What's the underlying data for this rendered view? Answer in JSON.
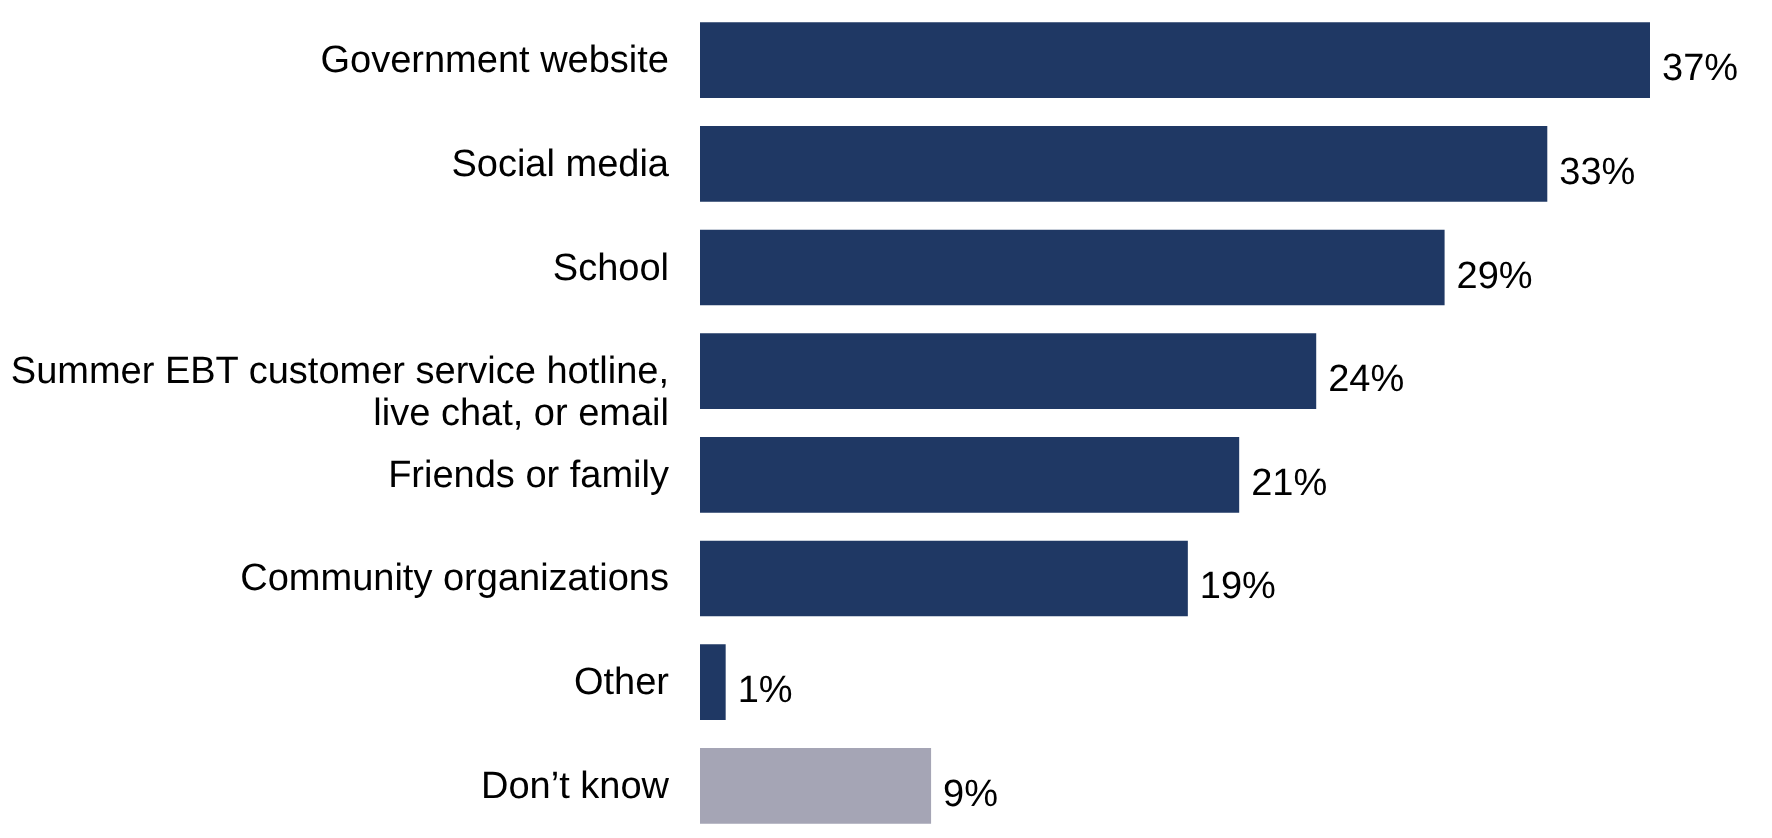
{
  "chart_data": {
    "type": "bar",
    "orientation": "horizontal",
    "categories": [
      "Government website",
      "Social media",
      "School",
      "Summer EBT customer service hotline, live chat, or email",
      "Friends or family",
      "Community organizations",
      "Other",
      "Don’t know"
    ],
    "values": [
      37,
      33,
      29,
      24,
      21,
      19,
      1,
      9
    ],
    "value_labels": [
      "37%",
      "33%",
      "29%",
      "24%",
      "21%",
      "19%",
      "1%",
      "9%"
    ],
    "colors": [
      "#1f3864",
      "#1f3864",
      "#1f3864",
      "#1f3864",
      "#1f3864",
      "#1f3864",
      "#1f3864",
      "#a5a5b5"
    ]
  }
}
